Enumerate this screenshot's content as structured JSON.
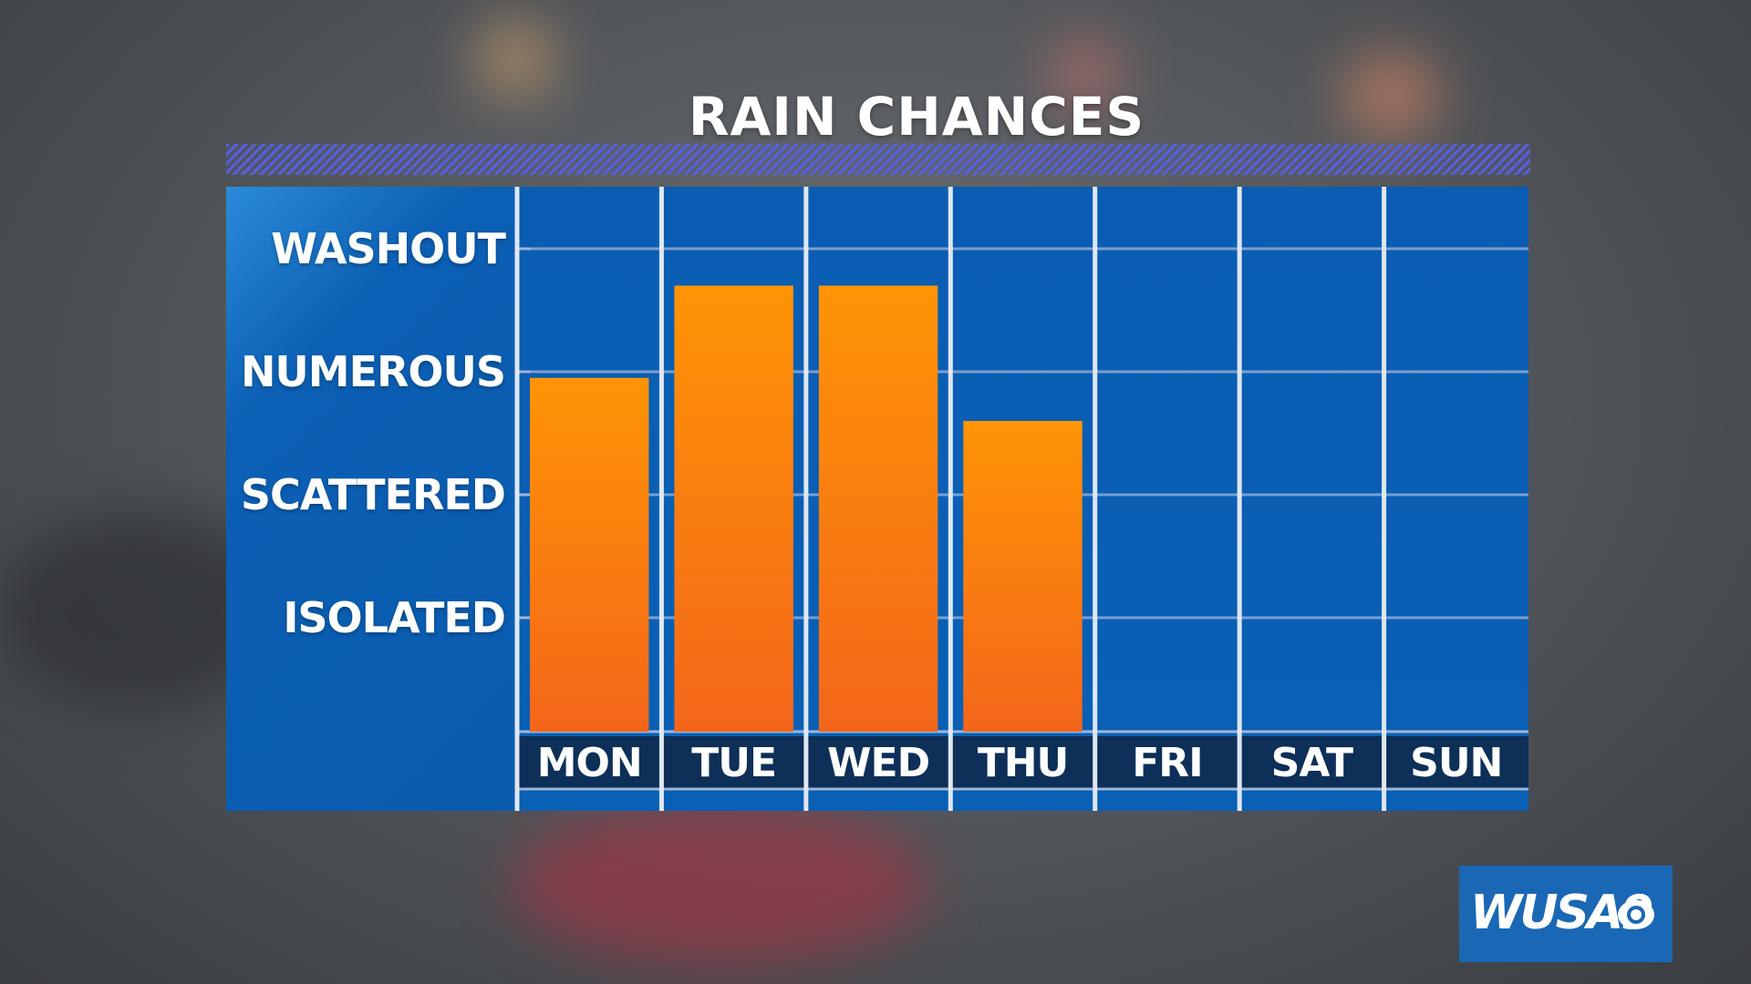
{
  "title": "RAIN CHANCES",
  "logo": {
    "text": "WUSA9",
    "mark": "cbs-eye-icon"
  },
  "colors": {
    "panel": "#0a5db3",
    "bar_top": "#ff9405",
    "bar_bottom": "#f4661a",
    "grid": "#9fb5d8",
    "divider": "#dfe7f2",
    "day_band": "#0d2f58"
  },
  "chart_data": {
    "type": "bar",
    "title": "RAIN CHANCES",
    "categories": [
      "MON",
      "TUE",
      "WED",
      "THU",
      "FRI",
      "SAT",
      "SUN"
    ],
    "y_levels": [
      "ISOLATED",
      "SCATTERED",
      "NUMEROUS",
      "WASHOUT"
    ],
    "values": [
      2.95,
      3.7,
      3.7,
      2.6,
      null,
      null,
      null
    ],
    "ylim": [
      0,
      4
    ],
    "grid": true,
    "legend": "none"
  }
}
